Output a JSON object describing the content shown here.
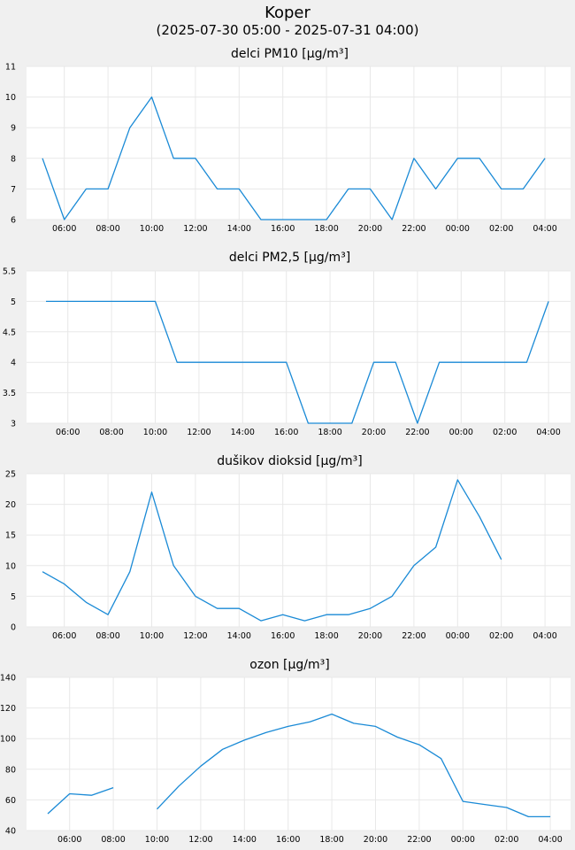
{
  "header": {
    "title": "Koper",
    "subtitle": "(2025-07-30 05:00 - 2025-07-31 04:00)"
  },
  "style": {
    "line_color": "#1a8ad6",
    "grid_color": "#e8e8e8",
    "plot_background": "#ffffff",
    "page_background": "#f0f0f0"
  },
  "chart_data": [
    {
      "type": "line",
      "title": "delci PM10 [µg/m³]",
      "x": [
        "05:00",
        "06:00",
        "07:00",
        "08:00",
        "09:00",
        "10:00",
        "11:00",
        "12:00",
        "13:00",
        "14:00",
        "15:00",
        "16:00",
        "17:00",
        "18:00",
        "19:00",
        "20:00",
        "21:00",
        "22:00",
        "23:00",
        "00:00",
        "01:00",
        "02:00",
        "03:00",
        "04:00"
      ],
      "xtick_labels": [
        "06:00",
        "08:00",
        "10:00",
        "12:00",
        "14:00",
        "16:00",
        "18:00",
        "20:00",
        "22:00",
        "00:00",
        "02:00",
        "04:00"
      ],
      "values": [
        8,
        6,
        7,
        7,
        9,
        10,
        8,
        8,
        7,
        7,
        6,
        6,
        6,
        6,
        7,
        7,
        6,
        8,
        7,
        8,
        8,
        7,
        7,
        8
      ],
      "ylim": [
        6,
        11
      ],
      "yticks": [
        "6",
        "7",
        "8",
        "9",
        "10",
        "11"
      ],
      "grid": true
    },
    {
      "type": "line",
      "title": "delci PM2,5 [µg/m³]",
      "x": [
        "05:00",
        "06:00",
        "07:00",
        "08:00",
        "09:00",
        "10:00",
        "11:00",
        "12:00",
        "13:00",
        "14:00",
        "15:00",
        "16:00",
        "17:00",
        "18:00",
        "19:00",
        "20:00",
        "21:00",
        "22:00",
        "23:00",
        "00:00",
        "01:00",
        "02:00",
        "03:00",
        "04:00"
      ],
      "xtick_labels": [
        "06:00",
        "08:00",
        "10:00",
        "12:00",
        "14:00",
        "16:00",
        "18:00",
        "20:00",
        "22:00",
        "00:00",
        "02:00",
        "04:00"
      ],
      "values": [
        5,
        5,
        5,
        5,
        5,
        5,
        4,
        4,
        4,
        4,
        4,
        4,
        3,
        3,
        3,
        4,
        4,
        3,
        4,
        4,
        4,
        4,
        4,
        5
      ],
      "ylim": [
        3,
        5.5
      ],
      "yticks": [
        "3",
        "3.5",
        "4",
        "4.5",
        "5",
        "5.5"
      ],
      "grid": true
    },
    {
      "type": "line",
      "title": "dušikov dioksid [µg/m³]",
      "x": [
        "05:00",
        "06:00",
        "07:00",
        "08:00",
        "09:00",
        "10:00",
        "11:00",
        "12:00",
        "13:00",
        "14:00",
        "15:00",
        "16:00",
        "17:00",
        "18:00",
        "19:00",
        "20:00",
        "21:00",
        "22:00",
        "23:00",
        "00:00",
        "01:00",
        "02:00",
        "03:00",
        "04:00"
      ],
      "xtick_labels": [
        "06:00",
        "08:00",
        "10:00",
        "12:00",
        "14:00",
        "16:00",
        "18:00",
        "20:00",
        "22:00",
        "00:00",
        "02:00",
        "04:00"
      ],
      "values": [
        9,
        7,
        4,
        2,
        9,
        22,
        10,
        5,
        3,
        3,
        1,
        2,
        1,
        2,
        2,
        3,
        5,
        10,
        13,
        24,
        18,
        11,
        null,
        null
      ],
      "ylim": [
        0,
        25
      ],
      "yticks": [
        "0",
        "5",
        "10",
        "15",
        "20",
        "25"
      ],
      "grid": true
    },
    {
      "type": "line",
      "title": "ozon [µg/m³]",
      "x": [
        "05:00",
        "06:00",
        "07:00",
        "08:00",
        "09:00",
        "10:00",
        "11:00",
        "12:00",
        "13:00",
        "14:00",
        "15:00",
        "16:00",
        "17:00",
        "18:00",
        "19:00",
        "20:00",
        "21:00",
        "22:00",
        "23:00",
        "00:00",
        "01:00",
        "02:00",
        "03:00",
        "04:00"
      ],
      "xtick_labels": [
        "06:00",
        "08:00",
        "10:00",
        "12:00",
        "14:00",
        "16:00",
        "18:00",
        "20:00",
        "22:00",
        "00:00",
        "02:00",
        "04:00"
      ],
      "values": [
        51,
        64,
        63,
        68,
        null,
        54,
        69,
        82,
        93,
        99,
        104,
        108,
        111,
        116,
        110,
        108,
        101,
        96,
        87,
        59,
        57,
        55,
        49,
        49
      ],
      "ylim": [
        40,
        140
      ],
      "yticks": [
        "40",
        "60",
        "80",
        "100",
        "120",
        "140"
      ],
      "grid": true
    }
  ]
}
